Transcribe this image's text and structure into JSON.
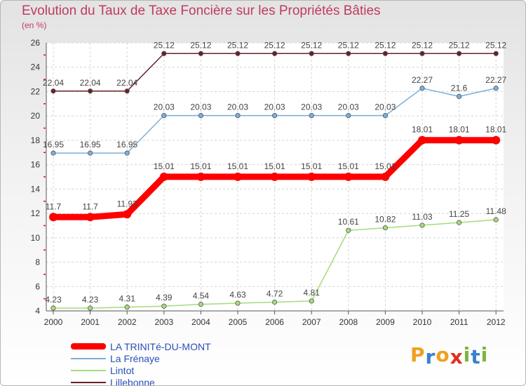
{
  "title": "Evolution du Taux de Taxe Foncière sur les Propriétés Bâties",
  "unit_label": "(en %)",
  "brand": {
    "letters": [
      "P",
      "r",
      "o",
      "x",
      "i",
      "t",
      "i"
    ],
    "colors": [
      "#f0a020",
      "#3a7fd0",
      "#f0a020",
      "#e0301e",
      "#7ab63a",
      "#3a7fd0",
      "#7ab63a"
    ]
  },
  "chart_data": {
    "type": "line",
    "title": "Evolution du Taux de Taxe Foncière sur les Propriétés Bâties",
    "ylabel": "(en %)",
    "xlabel": "",
    "ylim": [
      4,
      26
    ],
    "yticks": [
      4,
      6,
      8,
      10,
      12,
      14,
      16,
      18,
      20,
      22,
      24,
      26
    ],
    "categories": [
      "2000",
      "2001",
      "2002",
      "2003",
      "2004",
      "2005",
      "2006",
      "2007",
      "2008",
      "2009",
      "2010",
      "2011",
      "2012"
    ],
    "series": [
      {
        "name": "Lillebonne",
        "color": "#6b1f28",
        "width": 1.5,
        "marker": 3.2,
        "values": [
          22.04,
          22.04,
          22.04,
          25.12,
          25.12,
          25.12,
          25.12,
          25.12,
          25.12,
          25.12,
          25.12,
          25.12,
          25.12
        ],
        "labels": [
          "22.04",
          "22.04",
          "22.04",
          "25.12",
          "25.12",
          "25.12",
          "25.12",
          "25.12",
          "25.12",
          "25.12",
          "25.12",
          "25.12",
          "25.12"
        ]
      },
      {
        "name": "La Frénaye",
        "color": "#7bafd9",
        "width": 1.5,
        "marker": 3.2,
        "values": [
          16.95,
          16.95,
          16.95,
          20.03,
          20.03,
          20.03,
          20.03,
          20.03,
          20.03,
          20.03,
          22.27,
          21.6,
          22.27
        ],
        "labels": [
          "16.95",
          "16.95",
          "16.95",
          "20.03",
          "20.03",
          "20.03",
          "20.03",
          "20.03",
          "20.03",
          "20.03",
          "22.27",
          "21.6",
          "22.27"
        ]
      },
      {
        "name": "LA TRINITé-DU-MONT",
        "color": "#ff0000",
        "width": 9,
        "marker": 6,
        "values": [
          11.7,
          11.7,
          11.93,
          15.01,
          15.01,
          15.01,
          15.01,
          15.01,
          15.01,
          15.01,
          18.01,
          18.01,
          18.01
        ],
        "labels": [
          "11.7",
          "11.7",
          "11.93",
          "15.01",
          "15.01",
          "15.01",
          "15.01",
          "15.01",
          "15.01",
          "15.01",
          "18.01",
          "18.01",
          "18.01"
        ]
      },
      {
        "name": "Lintot",
        "color": "#a5dc7b",
        "width": 1.5,
        "marker": 3.2,
        "values": [
          4.23,
          4.23,
          4.31,
          4.39,
          4.54,
          4.63,
          4.72,
          4.81,
          10.61,
          10.82,
          11.03,
          11.25,
          11.48
        ],
        "labels": [
          "4.23",
          "4.23",
          "4.31",
          "4.39",
          "4.54",
          "4.63",
          "4.72",
          "4.81",
          "10.61",
          "10.82",
          "11.03",
          "11.25",
          "11.48"
        ]
      }
    ],
    "legend": [
      {
        "name": "LA TRINITé-DU-MONT",
        "color": "#ff0000",
        "thick": true
      },
      {
        "name": "La Frénaye",
        "color": "#7bafd9",
        "thick": false
      },
      {
        "name": "Lintot",
        "color": "#a5dc7b",
        "thick": false
      },
      {
        "name": "Lillebonne",
        "color": "#6b1f28",
        "thick": false
      }
    ]
  }
}
